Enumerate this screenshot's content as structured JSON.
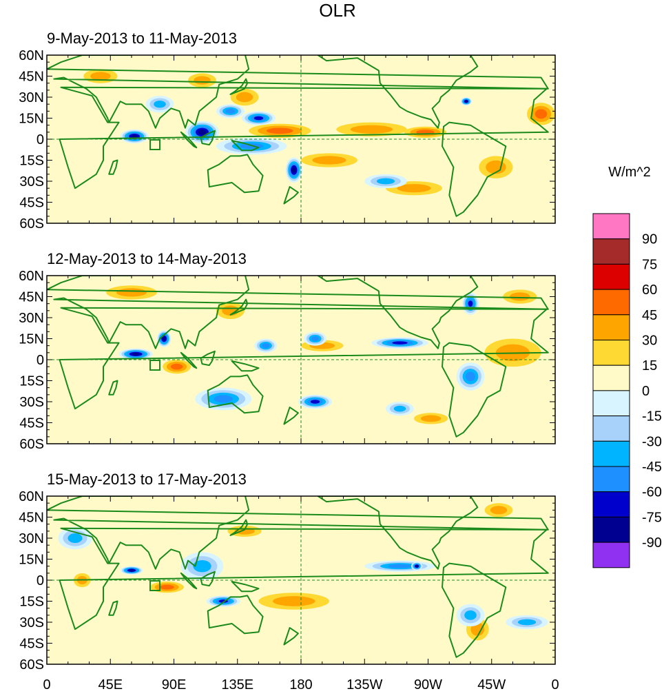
{
  "figure": {
    "title": "OLR",
    "units": "W/m^2"
  },
  "panels": [
    {
      "title": "9-May-2013 to 11-May-2013"
    },
    {
      "title": "12-May-2013 to 14-May-2013"
    },
    {
      "title": "15-May-2013 to 17-May-2013"
    }
  ],
  "axes": {
    "lat_labels": [
      "60N",
      "45N",
      "30N",
      "15N",
      "0",
      "15S",
      "30S",
      "45S",
      "60S"
    ],
    "lat_values": [
      60,
      45,
      30,
      15,
      0,
      -15,
      -30,
      -45,
      -60
    ],
    "lon_labels": [
      "0",
      "45E",
      "90E",
      "135E",
      "180",
      "135W",
      "90W",
      "45W",
      "0"
    ],
    "lon_values": [
      0,
      45,
      90,
      135,
      180,
      225,
      270,
      315,
      360
    ]
  },
  "colorbar": {
    "labels": [
      "90",
      "75",
      "60",
      "45",
      "30",
      "15",
      "0",
      "-15",
      "-30",
      "-45",
      "-60",
      "-75",
      "-90"
    ],
    "colors": [
      "#ff77c3",
      "#a52a2a",
      "#dd0000",
      "#ff6a00",
      "#ffa500",
      "#ffd933",
      "#fffac8",
      "#d8f4ff",
      "#a8d2fa",
      "#00b4ff",
      "#1e90ff",
      "#0000cc",
      "#000090",
      "#9030f0"
    ]
  },
  "anomaly_palette": {
    "pos1": "#fffac8",
    "pos2": "#ffd933",
    "pos3": "#ffa500",
    "pos4": "#ff6a00",
    "neg1": "#d8f4ff",
    "neg2": "#a8d2fa",
    "neg3": "#00b4ff",
    "neg4": "#1e90ff",
    "neg5": "#0000cc",
    "neg6": "#000090",
    "neg7": "#9030f0",
    "coast": "#1a8a1a"
  },
  "features": [
    [
      {
        "lon": 38,
        "lat": 45,
        "rlon": 12,
        "rlat": 5,
        "v": 30
      },
      {
        "lon": 110,
        "lat": 42,
        "rlon": 10,
        "rlat": 5,
        "v": 30
      },
      {
        "lon": 165,
        "lat": 6,
        "rlon": 22,
        "rlat": 5,
        "v": 45
      },
      {
        "lon": 230,
        "lat": 7,
        "rlon": 25,
        "rlat": 5,
        "v": 30
      },
      {
        "lon": 268,
        "lat": 5,
        "rlon": 15,
        "rlat": 4,
        "v": 45
      },
      {
        "lon": 140,
        "lat": 30,
        "rlon": 10,
        "rlat": 6,
        "v": 30
      },
      {
        "lon": 200,
        "lat": -15,
        "rlon": 20,
        "rlat": 5,
        "v": 30
      },
      {
        "lon": 318,
        "lat": -20,
        "rlon": 12,
        "rlat": 8,
        "v": 30
      },
      {
        "lon": 350,
        "lat": 18,
        "rlon": 10,
        "rlat": 8,
        "v": 45
      },
      {
        "lon": 260,
        "lat": -35,
        "rlon": 20,
        "rlat": 5,
        "v": 30
      },
      {
        "lon": 62,
        "lat": 2,
        "rlon": 10,
        "rlat": 5,
        "v": -75
      },
      {
        "lon": 110,
        "lat": 5,
        "rlon": 12,
        "rlat": 8,
        "v": -75
      },
      {
        "lon": 145,
        "lat": -5,
        "rlon": 25,
        "rlat": 6,
        "v": -45
      },
      {
        "lon": 175,
        "lat": -22,
        "rlon": 6,
        "rlat": 9,
        "v": -75
      },
      {
        "lon": 130,
        "lat": 20,
        "rlon": 10,
        "rlat": 5,
        "v": -45
      },
      {
        "lon": 80,
        "lat": 25,
        "rlon": 10,
        "rlat": 6,
        "v": -30
      },
      {
        "lon": 150,
        "lat": 15,
        "rlon": 12,
        "rlat": 5,
        "v": -60
      },
      {
        "lon": 297,
        "lat": 27,
        "rlon": 4,
        "rlat": 3,
        "v": -75
      },
      {
        "lon": 240,
        "lat": -30,
        "rlon": 15,
        "rlat": 5,
        "v": -30
      }
    ],
    [
      {
        "lon": 60,
        "lat": 48,
        "rlon": 18,
        "rlat": 5,
        "v": 30
      },
      {
        "lon": 130,
        "lat": 35,
        "rlon": 10,
        "rlat": 6,
        "v": 30
      },
      {
        "lon": 195,
        "lat": 10,
        "rlon": 15,
        "rlat": 4,
        "v": 30
      },
      {
        "lon": 92,
        "lat": -5,
        "rlon": 10,
        "rlat": 5,
        "v": 45
      },
      {
        "lon": 330,
        "lat": 5,
        "rlon": 20,
        "rlat": 10,
        "v": 30
      },
      {
        "lon": 335,
        "lat": 45,
        "rlon": 12,
        "rlat": 5,
        "v": 30
      },
      {
        "lon": 272,
        "lat": -42,
        "rlon": 12,
        "rlat": 4,
        "v": 30
      },
      {
        "lon": 63,
        "lat": 4,
        "rlon": 12,
        "rlat": 4,
        "v": -75
      },
      {
        "lon": 83,
        "lat": 15,
        "rlon": 5,
        "rlat": 6,
        "v": -75
      },
      {
        "lon": 125,
        "lat": -28,
        "rlon": 20,
        "rlat": 8,
        "v": -45
      },
      {
        "lon": 190,
        "lat": -30,
        "rlon": 12,
        "rlat": 5,
        "v": -60
      },
      {
        "lon": 250,
        "lat": 12,
        "rlon": 20,
        "rlat": 4,
        "v": -60
      },
      {
        "lon": 190,
        "lat": 15,
        "rlon": 8,
        "rlat": 5,
        "v": -45
      },
      {
        "lon": 300,
        "lat": 40,
        "rlon": 6,
        "rlat": 8,
        "v": -60
      },
      {
        "lon": 300,
        "lat": -12,
        "rlon": 10,
        "rlat": 10,
        "v": -45
      },
      {
        "lon": 250,
        "lat": -35,
        "rlon": 10,
        "rlat": 5,
        "v": -30
      },
      {
        "lon": 155,
        "lat": 10,
        "rlon": 8,
        "rlat": 5,
        "v": -45
      }
    ],
    [
      {
        "lon": 25,
        "lat": 0,
        "rlon": 6,
        "rlat": 5,
        "v": 30
      },
      {
        "lon": 85,
        "lat": -5,
        "rlon": 12,
        "rlat": 4,
        "v": 45
      },
      {
        "lon": 175,
        "lat": -15,
        "rlon": 25,
        "rlat": 6,
        "v": 30
      },
      {
        "lon": 140,
        "lat": 35,
        "rlon": 12,
        "rlat": 4,
        "v": 30
      },
      {
        "lon": 305,
        "lat": -35,
        "rlon": 8,
        "rlat": 8,
        "v": 30
      },
      {
        "lon": 320,
        "lat": 50,
        "rlon": 10,
        "rlat": 5,
        "v": 30
      },
      {
        "lon": 60,
        "lat": 7,
        "rlon": 8,
        "rlat": 3,
        "v": -75
      },
      {
        "lon": 125,
        "lat": -15,
        "rlon": 12,
        "rlat": 4,
        "v": -60
      },
      {
        "lon": 250,
        "lat": 10,
        "rlon": 25,
        "rlat": 4,
        "v": -45
      },
      {
        "lon": 262,
        "lat": 10,
        "rlon": 4,
        "rlat": 3,
        "v": -75
      },
      {
        "lon": 110,
        "lat": 10,
        "rlon": 15,
        "rlat": 10,
        "v": -30
      },
      {
        "lon": 300,
        "lat": -25,
        "rlon": 10,
        "rlat": 8,
        "v": -30
      },
      {
        "lon": 20,
        "lat": 30,
        "rlon": 12,
        "rlat": 8,
        "v": -30
      },
      {
        "lon": 340,
        "lat": -30,
        "rlon": 15,
        "rlat": 5,
        "v": -30
      }
    ]
  ]
}
